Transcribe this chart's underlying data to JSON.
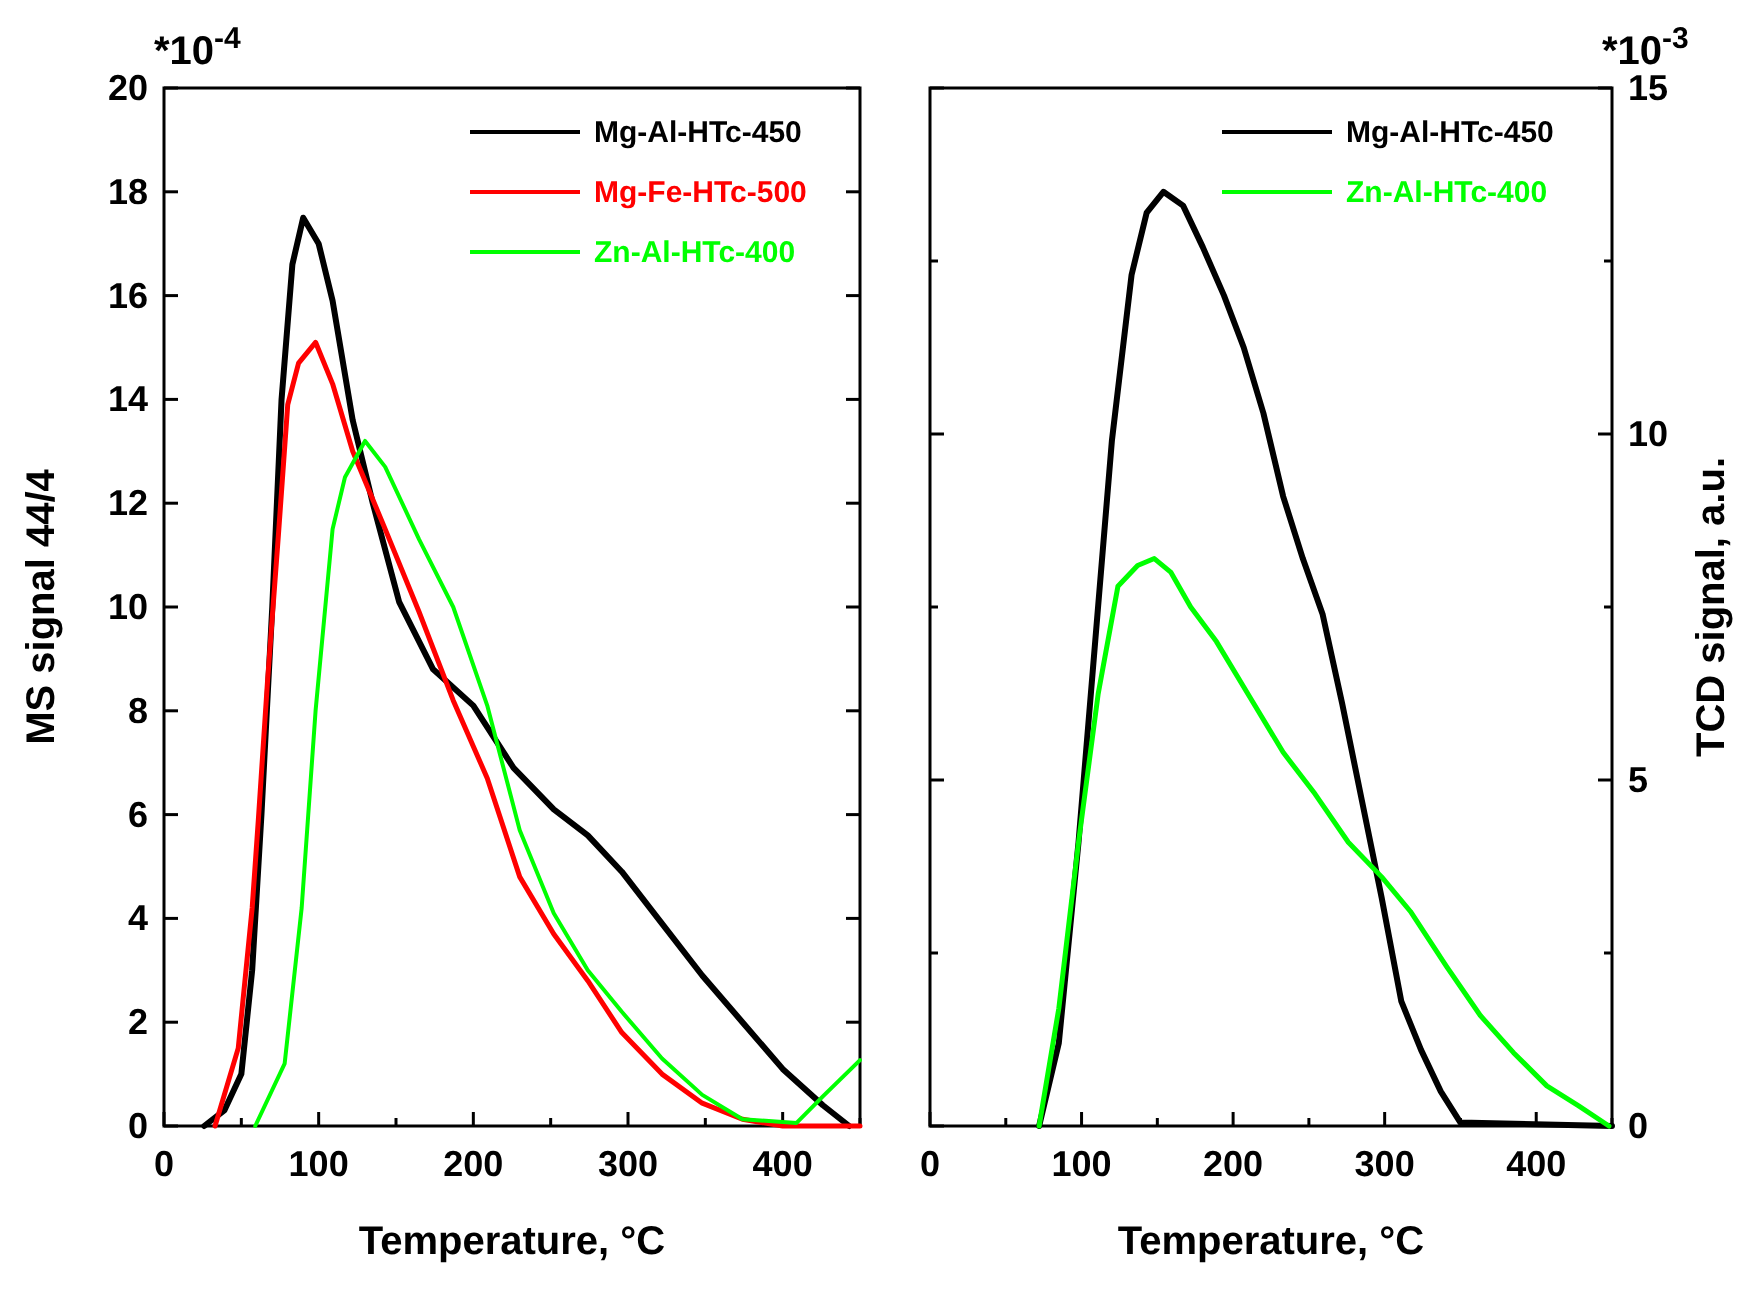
{
  "chart_data": [
    {
      "type": "line",
      "xlabel": "Temperature, °C",
      "ylabel": "MS signal 44/4",
      "annotations": [
        "*10$^{-4}$"
      ],
      "xlim": [
        0,
        450
      ],
      "xticks": [
        0,
        {
          "value": 50,
          "label": null
        },
        100,
        {
          "value": 150,
          "label": null
        },
        200,
        {
          "value": 250,
          "label": null
        },
        300,
        {
          "value": 350,
          "label": null
        },
        400,
        {
          "value": 450,
          "label": null
        }
      ],
      "ylim": [
        0,
        20
      ],
      "yticks": [
        0,
        2,
        4,
        6,
        8,
        10,
        12,
        14,
        16,
        18,
        20
      ],
      "legend": "top right",
      "grid": false,
      "line_style": "solid",
      "series": [
        {
          "name": "Mg-Al-HTc-450",
          "color": "#000000",
          "x": [
            26,
            39,
            50,
            57,
            63,
            70,
            76,
            83,
            90,
            100,
            109,
            122,
            135,
            152,
            174,
            200,
            226,
            252,
            274,
            296,
            322,
            348,
            374,
            400,
            426,
            443
          ],
          "values": [
            0,
            0.3,
            1,
            3,
            6,
            10,
            14,
            16.6,
            17.5,
            17,
            15.9,
            13.6,
            12,
            10.1,
            8.8,
            8.1,
            6.9,
            6.1,
            5.6,
            4.9,
            3.9,
            2.9,
            2.0,
            1.1,
            0.4,
            0
          ]
        },
        {
          "name": "Mg-Fe-HTc-500",
          "color": "#ff0000",
          "x": [
            33,
            48,
            57,
            61,
            67,
            74,
            80,
            87,
            98,
            109,
            122,
            143,
            165,
            187,
            209,
            230,
            252,
            274,
            296,
            322,
            348,
            374,
            400,
            450
          ],
          "values": [
            0,
            1.5,
            4.2,
            5.9,
            8.6,
            11.4,
            13.9,
            14.7,
            15.1,
            14.3,
            13,
            11.5,
            9.9,
            8.2,
            6.7,
            4.8,
            3.7,
            2.8,
            1.8,
            1.0,
            0.44,
            0.13,
            0,
            0
          ]
        },
        {
          "name": "Zn-Al-HTc-400",
          "color": "#00ff00",
          "x": [
            59,
            78,
            89,
            98,
            109,
            117,
            130,
            143,
            165,
            187,
            209,
            230,
            252,
            274,
            296,
            322,
            348,
            374,
            409,
            426,
            450
          ],
          "values": [
            0,
            1.2,
            4.2,
            8,
            11.5,
            12.5,
            13.2,
            12.7,
            11.3,
            10,
            8.1,
            5.7,
            4.1,
            3,
            2.2,
            1.3,
            0.6,
            0.13,
            0.06,
            0.57,
            1.27
          ]
        }
      ]
    },
    {
      "type": "line",
      "xlabel": "Temperature, °C",
      "y2label": "TCD signal, a.u.",
      "annotations": [
        "*10$^{-3}$"
      ],
      "xlim": [
        0,
        450
      ],
      "xticks": [
        0,
        {
          "value": 50,
          "label": null
        },
        100,
        {
          "value": 150,
          "label": null
        },
        200,
        {
          "value": 250,
          "label": null
        },
        300,
        {
          "value": 350,
          "label": null
        },
        400,
        {
          "value": 450,
          "label": null
        }
      ],
      "y2lim": [
        0,
        15
      ],
      "y2ticks": [
        0,
        {
          "value": 2.5,
          "label": null
        },
        5,
        {
          "value": 7.5,
          "label": null
        },
        10,
        {
          "value": 12.5,
          "label": null
        },
        15
      ],
      "legend": "top right",
      "grid": false,
      "line_style": "solid",
      "series": [
        {
          "name": "Mg-Al-HTc-450",
          "color": "#000000",
          "axis": "y2",
          "x": [
            72,
            85,
            98,
            109,
            120,
            133,
            143,
            154,
            167,
            180,
            194,
            207,
            220,
            233,
            246,
            259,
            272,
            285,
            298,
            311,
            324,
            337,
            350,
            450
          ],
          "values": [
            0,
            1.2,
            4.1,
            7,
            9.9,
            12.3,
            13.2,
            13.5,
            13.3,
            12.7,
            12,
            11.25,
            10.3,
            9.1,
            8.2,
            7.4,
            6.1,
            4.7,
            3.3,
            1.8,
            1.1,
            0.5,
            0.05,
            0
          ]
        },
        {
          "name": "Zn-Al-HTc-400",
          "color": "#00ff00",
          "axis": "y2",
          "x": [
            72,
            85,
            98,
            111,
            124,
            137,
            148,
            159,
            172,
            189,
            211,
            233,
            254,
            276,
            298,
            317,
            341,
            363,
            385,
            407,
            428,
            448
          ],
          "values": [
            0,
            1.7,
            4.1,
            6.25,
            7.8,
            8.1,
            8.2,
            8,
            7.5,
            7,
            6.2,
            5.4,
            4.8,
            4.1,
            3.6,
            3.1,
            2.3,
            1.6,
            1.06,
            0.58,
            0.29,
            0
          ]
        }
      ]
    }
  ]
}
